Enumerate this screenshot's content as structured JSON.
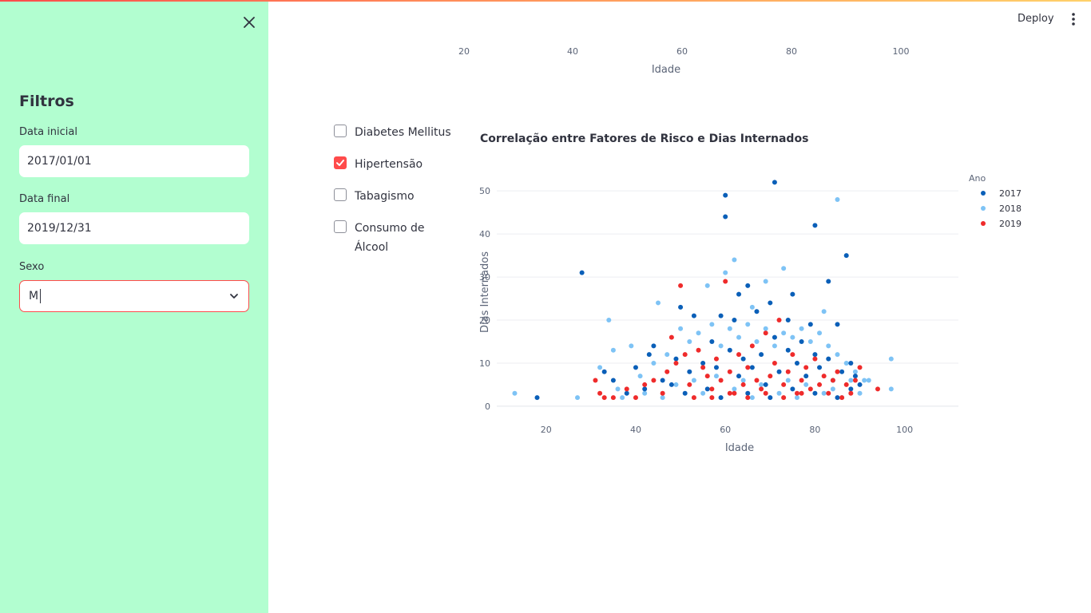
{
  "sidebar": {
    "title": "Filtros",
    "start_date": {
      "label": "Data inicial",
      "value": "2017/01/01"
    },
    "end_date": {
      "label": "Data final",
      "value": "2019/12/31"
    },
    "sex": {
      "label": "Sexo",
      "value": "M"
    }
  },
  "header": {
    "deploy_label": "Deploy"
  },
  "top_axis": {
    "ticks": [
      "20",
      "40",
      "60",
      "80",
      "100"
    ],
    "label": "Idade"
  },
  "risk_factors": [
    {
      "label": "Diabetes Mellitus",
      "checked": false
    },
    {
      "label": "Hipertensão",
      "checked": true
    },
    {
      "label": "Tabagismo",
      "checked": false
    },
    {
      "label": "Consumo de Álcool",
      "checked": false
    }
  ],
  "colors": {
    "accent": "#ff4b4b",
    "sidebar_bg": "#b2fed0",
    "s2017": "#0a5fb8",
    "s2018": "#7ec3f5",
    "s2019": "#ef2b2b"
  },
  "chart_data": {
    "type": "scatter",
    "title": "Correlação entre Fatores de Risco e Dias Internados",
    "xlabel": "Idade",
    "ylabel": "Dias Internados",
    "xlim": [
      9,
      112
    ],
    "ylim": [
      -1.5,
      53
    ],
    "x_ticks": [
      20,
      40,
      60,
      80,
      100
    ],
    "y_ticks": [
      0,
      10,
      20,
      30,
      40,
      50
    ],
    "grid": true,
    "legend": {
      "title": "Ano",
      "placement": "right"
    },
    "series": [
      {
        "name": "2017",
        "points": [
          [
            18,
            2
          ],
          [
            28,
            31
          ],
          [
            60,
            49
          ],
          [
            60,
            44
          ],
          [
            71,
            52
          ],
          [
            80,
            42
          ],
          [
            87,
            35
          ],
          [
            83,
            29
          ],
          [
            65,
            28
          ],
          [
            63,
            26
          ],
          [
            75,
            26
          ],
          [
            67,
            22
          ],
          [
            50,
            23
          ],
          [
            53,
            21
          ],
          [
            59,
            21
          ],
          [
            62,
            20
          ],
          [
            70,
            24
          ],
          [
            74,
            20
          ],
          [
            79,
            19
          ],
          [
            85,
            19
          ],
          [
            40,
            9
          ],
          [
            43,
            12
          ],
          [
            44,
            14
          ],
          [
            46,
            6
          ],
          [
            49,
            11
          ],
          [
            52,
            8
          ],
          [
            55,
            10
          ],
          [
            57,
            15
          ],
          [
            58,
            9
          ],
          [
            61,
            13
          ],
          [
            63,
            7
          ],
          [
            64,
            11
          ],
          [
            66,
            9
          ],
          [
            68,
            12
          ],
          [
            69,
            5
          ],
          [
            71,
            16
          ],
          [
            72,
            8
          ],
          [
            74,
            13
          ],
          [
            76,
            10
          ],
          [
            77,
            15
          ],
          [
            78,
            7
          ],
          [
            80,
            12
          ],
          [
            81,
            9
          ],
          [
            83,
            11
          ],
          [
            84,
            6
          ],
          [
            86,
            8
          ],
          [
            88,
            10
          ],
          [
            89,
            7
          ],
          [
            90,
            5
          ],
          [
            33,
            8
          ],
          [
            35,
            6
          ],
          [
            38,
            3
          ],
          [
            42,
            4
          ],
          [
            48,
            5
          ],
          [
            51,
            3
          ],
          [
            56,
            4
          ],
          [
            59,
            2
          ],
          [
            65,
            3
          ],
          [
            70,
            2
          ],
          [
            75,
            4
          ],
          [
            80,
            3
          ],
          [
            85,
            2
          ],
          [
            88,
            4
          ]
        ]
      },
      {
        "name": "2018",
        "points": [
          [
            13,
            3
          ],
          [
            27,
            2
          ],
          [
            34,
            20
          ],
          [
            35,
            13
          ],
          [
            39,
            14
          ],
          [
            45,
            24
          ],
          [
            56,
            28
          ],
          [
            60,
            31
          ],
          [
            62,
            34
          ],
          [
            66,
            23
          ],
          [
            69,
            29
          ],
          [
            73,
            32
          ],
          [
            82,
            22
          ],
          [
            85,
            48
          ],
          [
            97,
            11
          ],
          [
            97,
            4
          ],
          [
            92,
            6
          ],
          [
            32,
            9
          ],
          [
            36,
            4
          ],
          [
            37,
            2
          ],
          [
            41,
            7
          ],
          [
            44,
            10
          ],
          [
            47,
            12
          ],
          [
            50,
            18
          ],
          [
            52,
            15
          ],
          [
            54,
            17
          ],
          [
            57,
            19
          ],
          [
            59,
            14
          ],
          [
            61,
            18
          ],
          [
            63,
            16
          ],
          [
            65,
            19
          ],
          [
            67,
            15
          ],
          [
            69,
            18
          ],
          [
            71,
            14
          ],
          [
            73,
            17
          ],
          [
            75,
            16
          ],
          [
            77,
            18
          ],
          [
            79,
            15
          ],
          [
            81,
            17
          ],
          [
            83,
            14
          ],
          [
            85,
            12
          ],
          [
            87,
            10
          ],
          [
            89,
            8
          ],
          [
            91,
            6
          ],
          [
            42,
            3
          ],
          [
            46,
            2
          ],
          [
            49,
            5
          ],
          [
            53,
            6
          ],
          [
            55,
            3
          ],
          [
            58,
            7
          ],
          [
            62,
            4
          ],
          [
            64,
            6
          ],
          [
            66,
            2
          ],
          [
            68,
            5
          ],
          [
            72,
            3
          ],
          [
            74,
            6
          ],
          [
            76,
            2
          ],
          [
            78,
            5
          ],
          [
            82,
            3
          ],
          [
            84,
            4
          ],
          [
            86,
            2
          ],
          [
            88,
            6
          ],
          [
            90,
            3
          ]
        ]
      },
      {
        "name": "2019",
        "points": [
          [
            31,
            6
          ],
          [
            32,
            3
          ],
          [
            33,
            2
          ],
          [
            35,
            2
          ],
          [
            38,
            4
          ],
          [
            40,
            2
          ],
          [
            42,
            5
          ],
          [
            44,
            6
          ],
          [
            46,
            3
          ],
          [
            47,
            8
          ],
          [
            48,
            16
          ],
          [
            49,
            10
          ],
          [
            50,
            28
          ],
          [
            51,
            12
          ],
          [
            52,
            5
          ],
          [
            54,
            13
          ],
          [
            55,
            9
          ],
          [
            56,
            7
          ],
          [
            57,
            4
          ],
          [
            58,
            11
          ],
          [
            59,
            6
          ],
          [
            60,
            29
          ],
          [
            61,
            8
          ],
          [
            62,
            3
          ],
          [
            63,
            12
          ],
          [
            64,
            5
          ],
          [
            65,
            9
          ],
          [
            66,
            14
          ],
          [
            67,
            6
          ],
          [
            68,
            4
          ],
          [
            69,
            17
          ],
          [
            70,
            7
          ],
          [
            71,
            10
          ],
          [
            72,
            20
          ],
          [
            73,
            5
          ],
          [
            74,
            8
          ],
          [
            75,
            12
          ],
          [
            76,
            3
          ],
          [
            77,
            6
          ],
          [
            78,
            9
          ],
          [
            79,
            4
          ],
          [
            80,
            11
          ],
          [
            81,
            5
          ],
          [
            82,
            7
          ],
          [
            83,
            3
          ],
          [
            84,
            6
          ],
          [
            85,
            8
          ],
          [
            86,
            2
          ],
          [
            87,
            5
          ],
          [
            88,
            3
          ],
          [
            89,
            6
          ],
          [
            90,
            9
          ],
          [
            94,
            4
          ],
          [
            53,
            2
          ],
          [
            57,
            2
          ],
          [
            61,
            3
          ],
          [
            65,
            2
          ],
          [
            69,
            3
          ],
          [
            73,
            2
          ],
          [
            77,
            3
          ]
        ]
      }
    ]
  }
}
